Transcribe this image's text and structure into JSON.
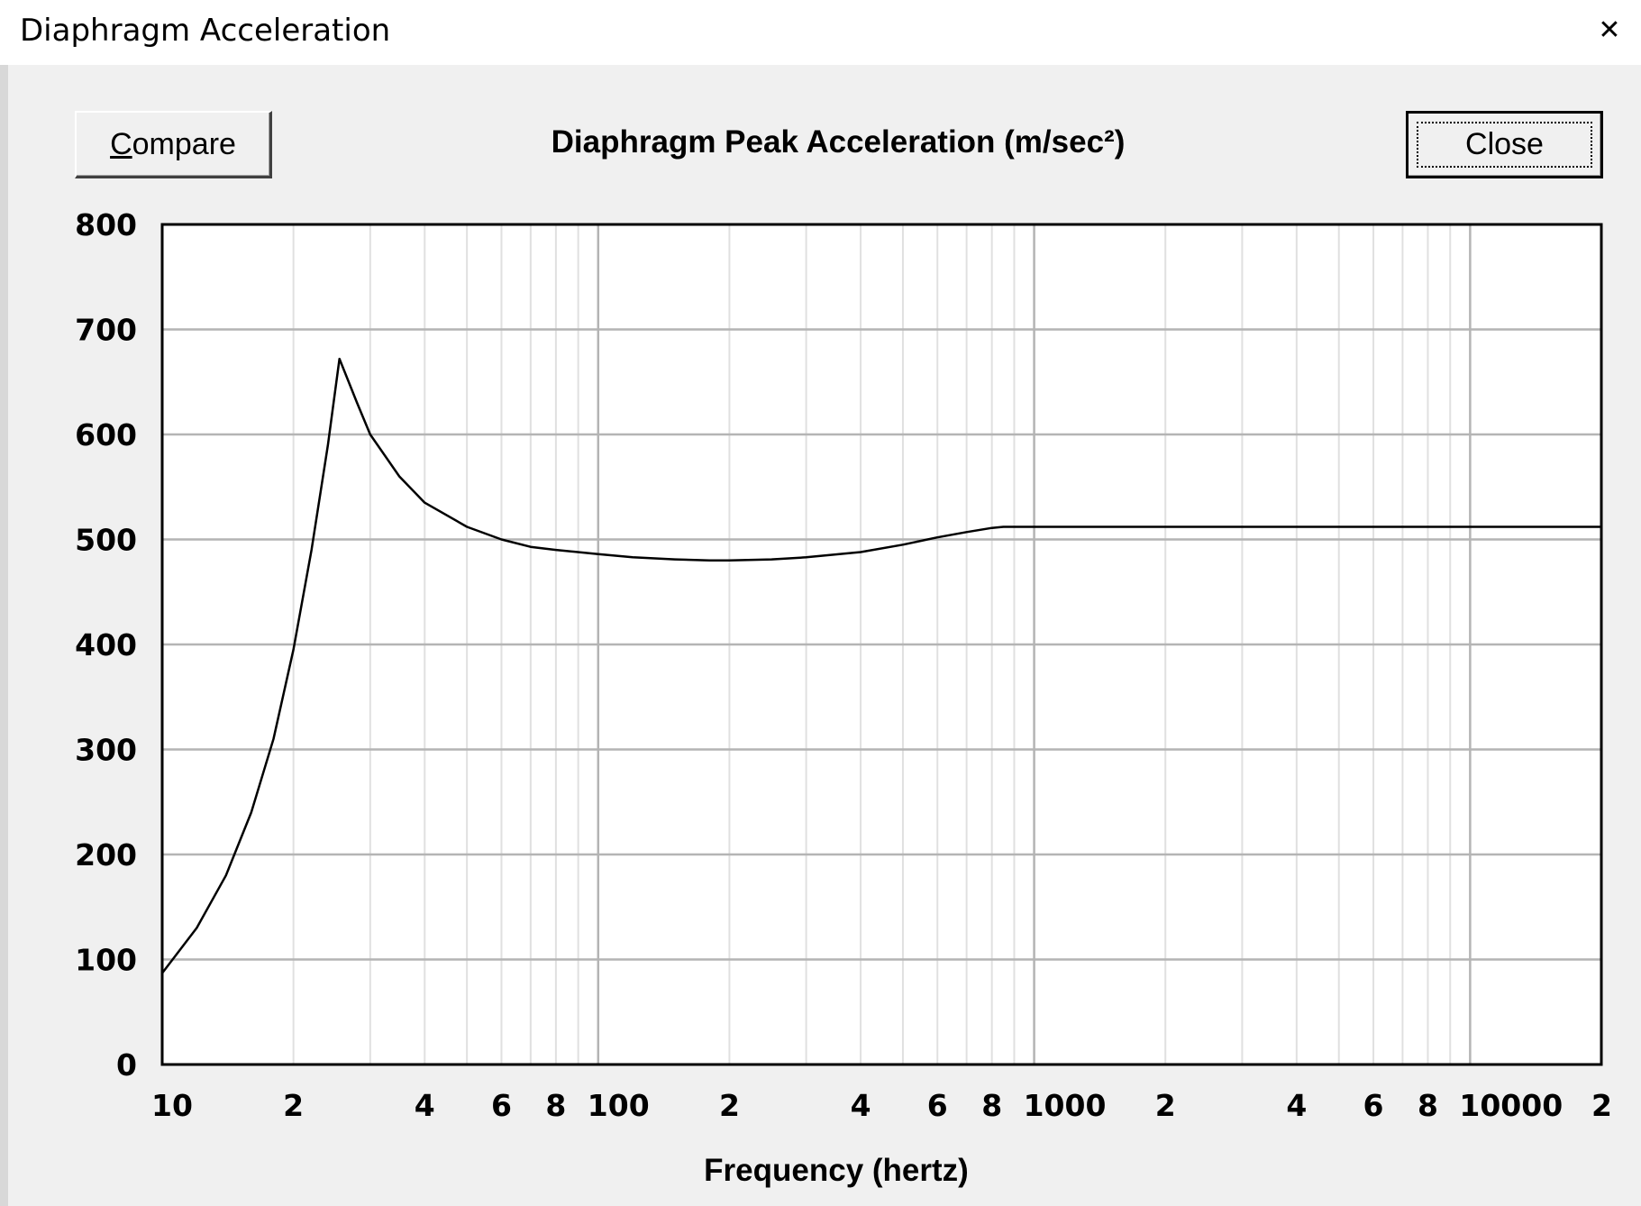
{
  "window": {
    "title": "Diaphragm Acceleration",
    "close_glyph": "✕"
  },
  "toolbar": {
    "compare_label_first": "C",
    "compare_label_rest": "ompare",
    "close_label": "Close"
  },
  "chart_data": {
    "type": "line",
    "title": "Diaphragm Peak Acceleration (m/sec²)",
    "xlabel": "Frequency (hertz)",
    "ylabel": "",
    "x_scale": "log",
    "xlim": [
      10,
      20000
    ],
    "ylim": [
      0,
      800
    ],
    "grid": true,
    "y_ticks": [
      "0",
      "100",
      "200",
      "300",
      "400",
      "500",
      "600",
      "700",
      "800"
    ],
    "x_ticks": [
      {
        "value": 10,
        "label": "10"
      },
      {
        "value": 20,
        "label": "2"
      },
      {
        "value": 40,
        "label": "4"
      },
      {
        "value": 60,
        "label": "6"
      },
      {
        "value": 80,
        "label": "8"
      },
      {
        "value": 100,
        "label": "100"
      },
      {
        "value": 200,
        "label": "2"
      },
      {
        "value": 400,
        "label": "4"
      },
      {
        "value": 600,
        "label": "6"
      },
      {
        "value": 800,
        "label": "8"
      },
      {
        "value": 1000,
        "label": "1000"
      },
      {
        "value": 2000,
        "label": "2"
      },
      {
        "value": 4000,
        "label": "4"
      },
      {
        "value": 6000,
        "label": "6"
      },
      {
        "value": 8000,
        "label": "8"
      },
      {
        "value": 10000,
        "label": "10000"
      },
      {
        "value": 20000,
        "label": "2"
      }
    ],
    "series": [
      {
        "color": "#000000",
        "points": [
          [
            10,
            87
          ],
          [
            12,
            130
          ],
          [
            14,
            180
          ],
          [
            16,
            240
          ],
          [
            18,
            310
          ],
          [
            20,
            395
          ],
          [
            22,
            490
          ],
          [
            24,
            590
          ],
          [
            25.5,
            672
          ],
          [
            28,
            630
          ],
          [
            30,
            600
          ],
          [
            35,
            560
          ],
          [
            40,
            535
          ],
          [
            50,
            512
          ],
          [
            60,
            500
          ],
          [
            70,
            493
          ],
          [
            80,
            490
          ],
          [
            100,
            486
          ],
          [
            120,
            483
          ],
          [
            150,
            481
          ],
          [
            180,
            480
          ],
          [
            200,
            480
          ],
          [
            250,
            481
          ],
          [
            300,
            483
          ],
          [
            400,
            488
          ],
          [
            500,
            495
          ],
          [
            600,
            502
          ],
          [
            700,
            507
          ],
          [
            800,
            511
          ],
          [
            850,
            512
          ],
          [
            1000,
            512
          ],
          [
            2000,
            512
          ],
          [
            5000,
            512
          ],
          [
            10000,
            512
          ],
          [
            20000,
            512
          ]
        ]
      }
    ]
  }
}
